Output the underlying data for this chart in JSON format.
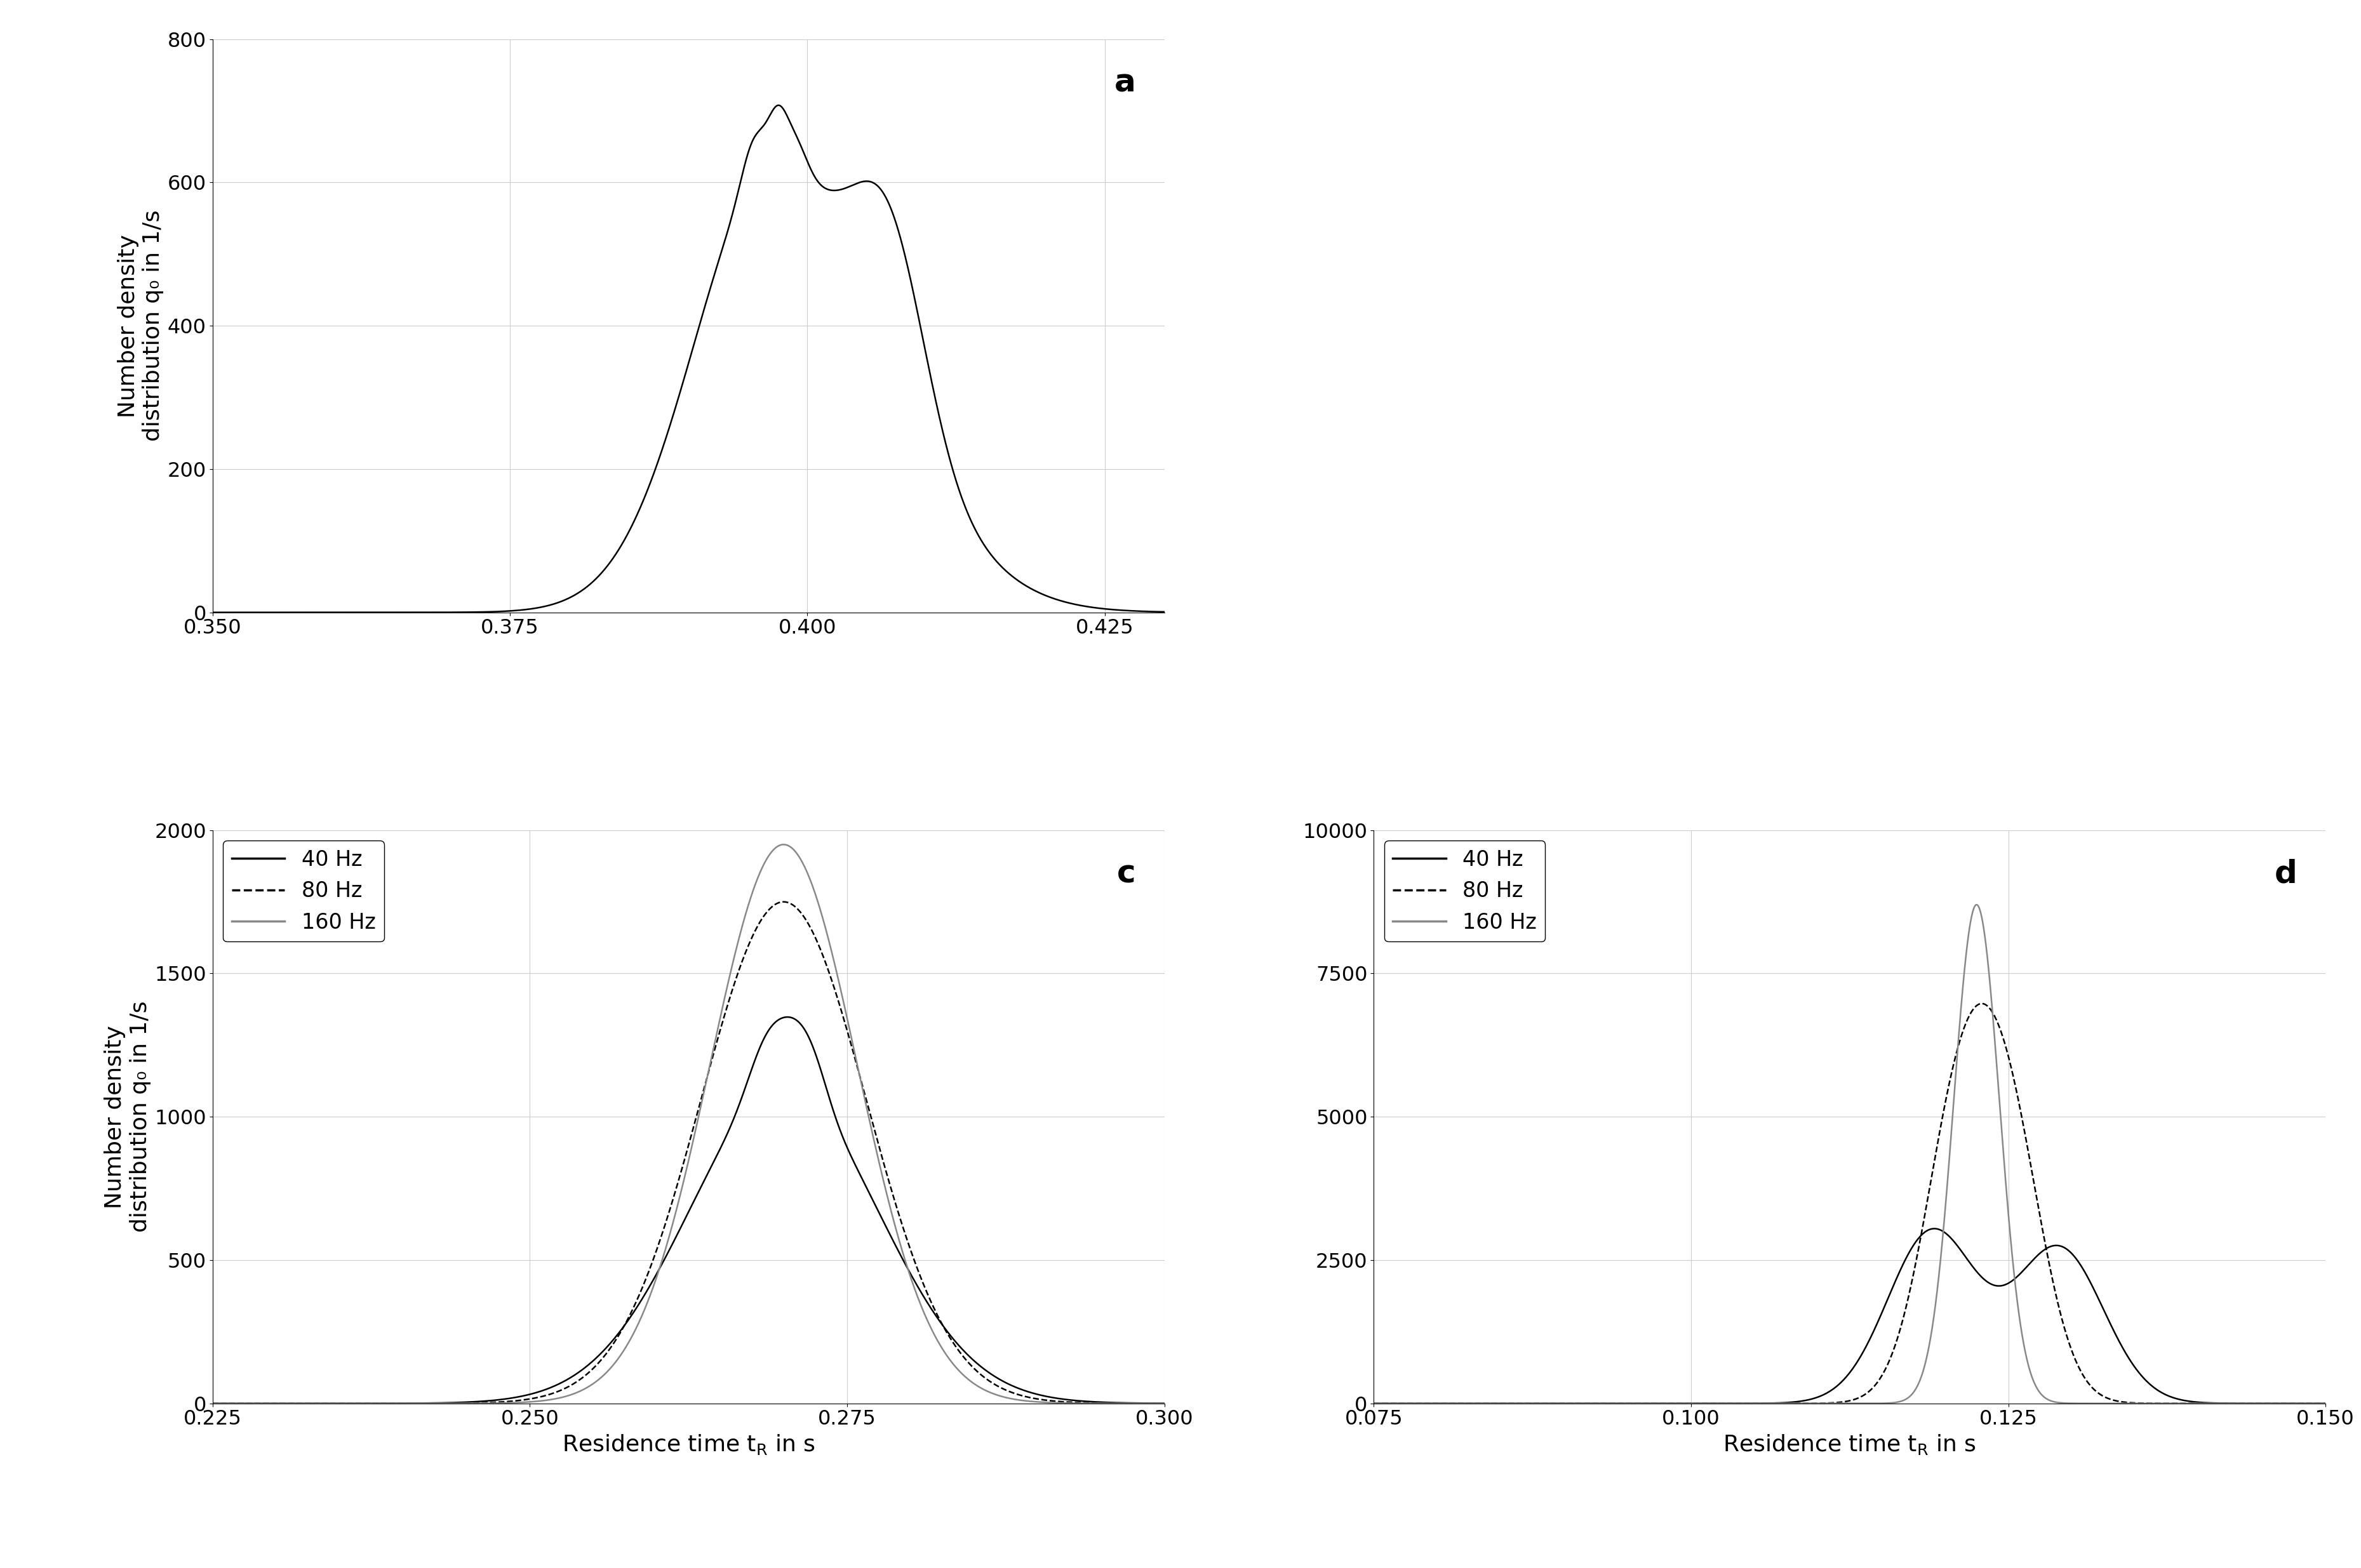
{
  "background_color": "#ffffff",
  "panel_a": {
    "label": "a",
    "xlim": [
      0.35,
      0.43
    ],
    "ylim": [
      0,
      800
    ],
    "xticks": [
      0.35,
      0.375,
      0.4,
      0.425
    ],
    "yticks": [
      0,
      200,
      400,
      600,
      800
    ],
    "xticklabels": [
      "0.350",
      "0.375",
      "0.400",
      "0.425"
    ],
    "ylabel": "Number density\ndistribution q₀ in 1/s"
  },
  "panel_c": {
    "label": "c",
    "xlim": [
      0.225,
      0.3
    ],
    "ylim": [
      0,
      2000
    ],
    "xticks": [
      0.225,
      0.25,
      0.275,
      0.3
    ],
    "yticks": [
      0,
      500,
      1000,
      1500,
      2000
    ],
    "xticklabels": [
      "0.225",
      "0.250",
      "0.275",
      "0.300"
    ],
    "xlabel": "Residence time t_R in s",
    "ylabel": "Number density\ndistribution q₀ in 1/s"
  },
  "panel_d": {
    "label": "d",
    "xlim": [
      0.075,
      0.15
    ],
    "ylim": [
      0,
      10000
    ],
    "xticks": [
      0.075,
      0.1,
      0.125,
      0.15
    ],
    "yticks": [
      0,
      2500,
      5000,
      7500,
      10000
    ],
    "xticklabels": [
      "0.075",
      "0.100",
      "0.125",
      "0.150"
    ],
    "yticklabels": [
      "0",
      "2500",
      "5000",
      "7500",
      "10000"
    ],
    "xlabel": "Residence time t_R in s",
    "ylabel": ""
  },
  "grid_color": "#cccccc",
  "line_color_black": "#000000",
  "line_color_gray": "#888888",
  "font_size_label": 26,
  "font_size_tick": 23,
  "font_size_panel": 36,
  "font_size_legend": 24,
  "legend_labels": [
    "40 Hz",
    "80 Hz",
    "160 Hz"
  ]
}
